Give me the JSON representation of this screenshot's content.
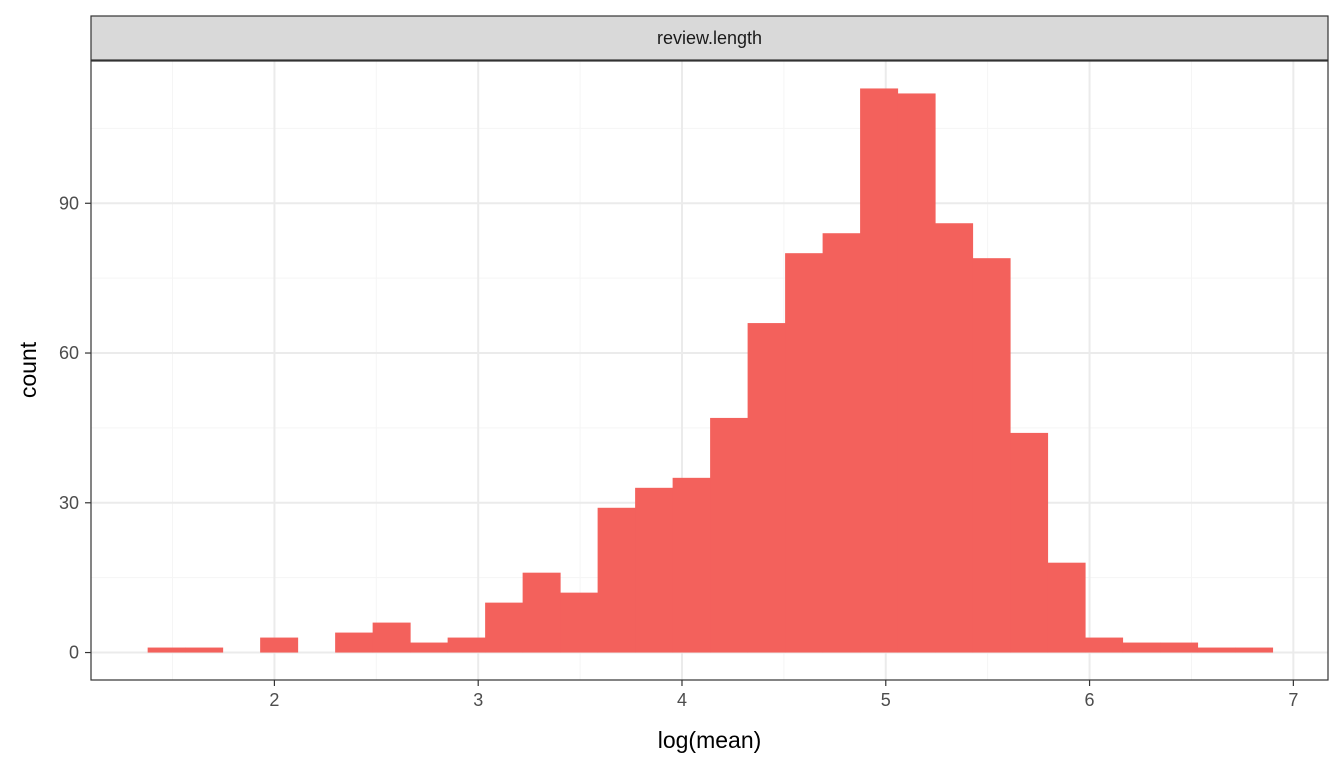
{
  "chart_data": {
    "type": "bar",
    "facet_label": "review.length",
    "xlabel": "log(mean)",
    "ylabel": "count",
    "xlim": [
      1.1,
      7.17
    ],
    "ylim": [
      -5.5,
      118.5
    ],
    "x_ticks": [
      2,
      3,
      4,
      5,
      6,
      7
    ],
    "x_tick_labels": [
      "2",
      "3",
      "4",
      "5",
      "6",
      "7"
    ],
    "y_ticks": [
      0,
      30,
      60,
      90
    ],
    "y_tick_labels": [
      "0",
      "30",
      "60",
      "90"
    ],
    "grid": true,
    "bin_width": 0.184,
    "bins": [
      {
        "x": 1.47,
        "count": 1
      },
      {
        "x": 1.654,
        "count": 1
      },
      {
        "x": 1.838,
        "count": 0
      },
      {
        "x": 2.022,
        "count": 3
      },
      {
        "x": 2.206,
        "count": 0
      },
      {
        "x": 2.39,
        "count": 4
      },
      {
        "x": 2.574,
        "count": 6
      },
      {
        "x": 2.758,
        "count": 2
      },
      {
        "x": 2.942,
        "count": 3
      },
      {
        "x": 3.126,
        "count": 10
      },
      {
        "x": 3.31,
        "count": 16
      },
      {
        "x": 3.494,
        "count": 12
      },
      {
        "x": 3.678,
        "count": 29
      },
      {
        "x": 3.862,
        "count": 33
      },
      {
        "x": 4.046,
        "count": 35
      },
      {
        "x": 4.23,
        "count": 47
      },
      {
        "x": 4.414,
        "count": 66
      },
      {
        "x": 4.598,
        "count": 80
      },
      {
        "x": 4.782,
        "count": 84
      },
      {
        "x": 4.966,
        "count": 113
      },
      {
        "x": 5.15,
        "count": 112
      },
      {
        "x": 5.334,
        "count": 86
      },
      {
        "x": 5.518,
        "count": 79
      },
      {
        "x": 5.702,
        "count": 44
      },
      {
        "x": 5.886,
        "count": 18
      },
      {
        "x": 6.07,
        "count": 3
      },
      {
        "x": 6.254,
        "count": 2
      },
      {
        "x": 6.438,
        "count": 2
      },
      {
        "x": 6.622,
        "count": 1
      },
      {
        "x": 6.806,
        "count": 1
      }
    ],
    "colors": {
      "bar": "#F3615C",
      "strip_fill": "#D9D9D9",
      "grid_major": "#EBEBEB",
      "grid_minor": "#F5F5F5",
      "border": "#333333"
    }
  }
}
